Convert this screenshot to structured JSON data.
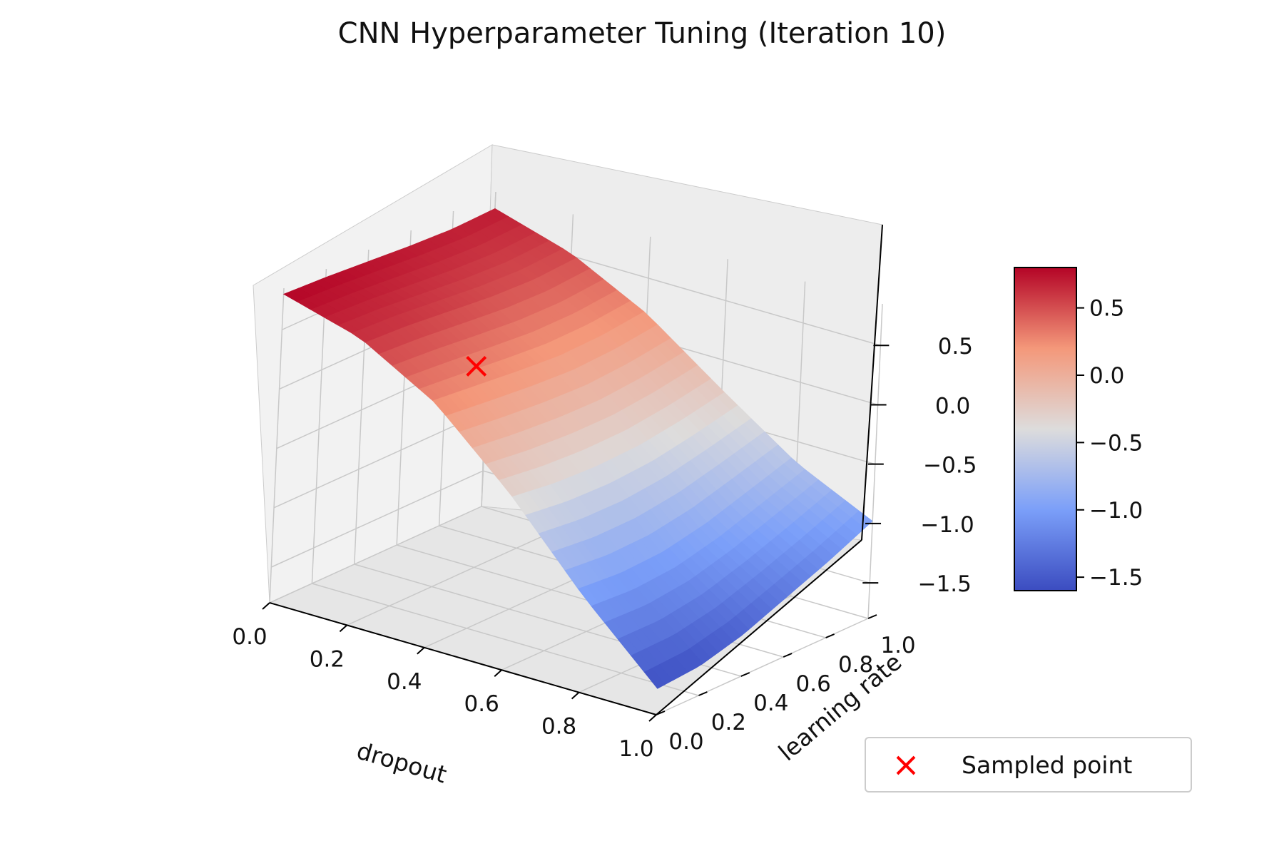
{
  "chart_data": {
    "type": "surface3d",
    "title": "CNN Hyperparameter Tuning (Iteration 10)",
    "xlabel": "dropout",
    "ylabel": "learning rate",
    "zlabel": "",
    "xlim": [
      0,
      1
    ],
    "ylim": [
      0,
      1
    ],
    "zlim": [
      -1.8,
      0.85
    ],
    "x_ticks": [
      "0.0",
      "0.2",
      "0.4",
      "0.6",
      "0.8",
      "1.0"
    ],
    "y_ticks": [
      "0.0",
      "0.2",
      "0.4",
      "0.6",
      "0.8",
      "1.0"
    ],
    "z_ticks": [
      "−1.5",
      "−1.0",
      "−0.5",
      "0.0",
      "0.5"
    ],
    "surface": {
      "x": [
        0.0,
        0.2,
        0.4,
        0.6,
        0.8,
        1.0
      ],
      "y": [
        0.0,
        0.2,
        0.4,
        0.6,
        0.8,
        1.0
      ],
      "z": [
        [
          0.8,
          0.62,
          0.26,
          -0.31,
          -0.99,
          -1.58
        ],
        [
          0.78,
          0.6,
          0.22,
          -0.36,
          -1.02,
          -1.55
        ],
        [
          0.75,
          0.56,
          0.18,
          -0.38,
          -1.0,
          -1.45
        ],
        [
          0.72,
          0.52,
          0.15,
          -0.37,
          -0.92,
          -1.3
        ],
        [
          0.7,
          0.5,
          0.16,
          -0.32,
          -0.8,
          -1.15
        ],
        [
          0.71,
          0.52,
          0.2,
          -0.25,
          -0.68,
          -0.98
        ]
      ]
    },
    "sampled_points": [
      {
        "x": 0.05,
        "y": 0.85,
        "z": -0.45
      }
    ],
    "colormap": "coolwarm",
    "colorbar": {
      "range": [
        -1.6,
        0.8
      ],
      "ticks": [
        "0.5",
        "0.0",
        "−0.5",
        "−1.0",
        "−1.5"
      ]
    },
    "legend": {
      "position": "lower-right",
      "entries": [
        {
          "label": "Sampled point",
          "marker": "x",
          "color": "#ff0000"
        }
      ]
    },
    "grid": true
  }
}
